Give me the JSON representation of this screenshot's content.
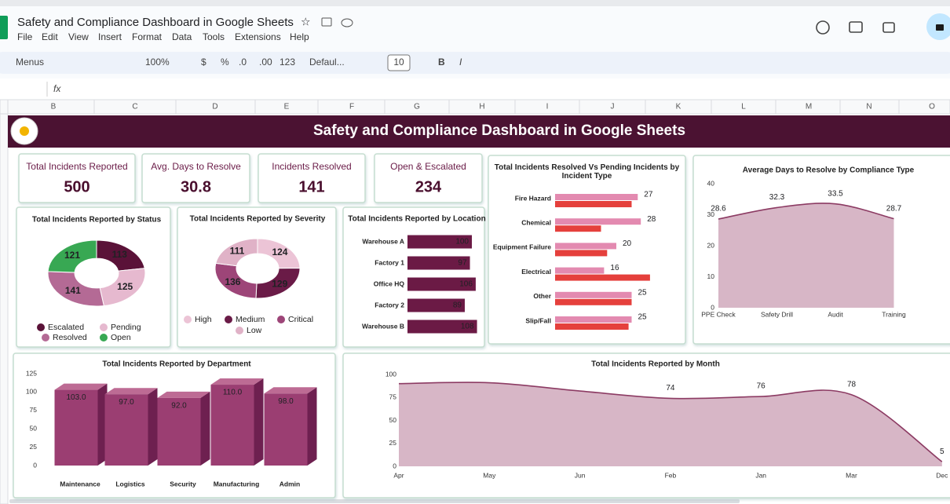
{
  "app": {
    "doc_title": "Safety and Compliance Dashboard in Google Sheets",
    "menu": [
      "File",
      "Edit",
      "View",
      "Insert",
      "Format",
      "Data",
      "Tools",
      "Extensions",
      "Help"
    ],
    "toolbar": [
      "Menus",
      "100%",
      "$",
      "%",
      ".0",
      ".00",
      "123",
      "Defaul...",
      "10",
      "B",
      "I"
    ],
    "formula_label": "fx",
    "columns": [
      "B",
      "C",
      "D",
      "E",
      "F",
      "G",
      "H",
      "I",
      "J",
      "K",
      "L",
      "M",
      "N",
      "O"
    ]
  },
  "dashboard": {
    "title": "Safety and Compliance Dashboard in Google Sheets",
    "kpis": [
      {
        "label": "Total Incidents Reported",
        "value": 500
      },
      {
        "label": "Avg. Days to Resolve",
        "value": 30.8
      },
      {
        "label": "Incidents Resolved",
        "value": 141
      },
      {
        "label": "Open & Escalated",
        "value": 234
      }
    ]
  },
  "chart_data": [
    {
      "type": "donut",
      "title": "Total Incidents Reported by Status",
      "categories": [
        "Escalated",
        "Pending",
        "Resolved",
        "Open"
      ],
      "values": [
        113,
        125,
        141,
        121
      ],
      "colors": [
        "#5a1238",
        "#e6b9cf",
        "#b46a95",
        "#38a853"
      ]
    },
    {
      "type": "donut",
      "title": "Total Incidents Reported by Severity",
      "categories": [
        "High",
        "Medium",
        "Critical",
        "Low"
      ],
      "values": [
        124,
        129,
        136,
        111
      ],
      "colors": [
        "#ecc4d6",
        "#6a1b47",
        "#9d4578",
        "#e0b2c7"
      ]
    },
    {
      "type": "hbar",
      "title": "Total Incidents Reported by Location",
      "categories": [
        "Warehouse A",
        "Factory 1",
        "Office HQ",
        "Factory 2",
        "Warehouse B"
      ],
      "values": [
        100,
        97,
        106,
        89,
        108
      ],
      "color": "#6b1a45"
    },
    {
      "type": "hbar_grouped",
      "title": "Total Incidents Resolved Vs Pending Incidents by Incident Type",
      "categories": [
        "Fire Hazard",
        "Chemical",
        "Equipment Failure",
        "Electrical",
        "Other",
        "Slip/Fall"
      ],
      "series": [
        {
          "color": "#e38ab0",
          "values": [
            27,
            28,
            20,
            16,
            25,
            25
          ],
          "data_labels": true
        },
        {
          "color": "#e5403c",
          "values": [
            25,
            15,
            17,
            31,
            25,
            24
          ],
          "data_labels": false
        }
      ]
    },
    {
      "type": "area",
      "title": "Average Days to Resolve by Compliance Type",
      "categories": [
        "PPE Check",
        "Safety Drill",
        "Audit",
        "Training"
      ],
      "values": [
        28.6,
        32.3,
        33.5,
        28.7
      ],
      "ylim": [
        0,
        40
      ],
      "yticks": [
        0,
        10,
        20,
        30,
        40
      ],
      "color": "#8c3b63",
      "fill": "#d7b6c6",
      "grid": false
    },
    {
      "type": "bar3d",
      "title": "Total Incidents Reported by Department",
      "categories": [
        "Maintenance",
        "Logistics",
        "Security",
        "Manufacturing",
        "Admin"
      ],
      "values": [
        103,
        97,
        92,
        110,
        98
      ],
      "value_labels": [
        "103.0",
        "97.0",
        "92.0",
        "110.0",
        "98.0"
      ],
      "ylim": [
        0,
        125
      ],
      "yticks": [
        0,
        25,
        50,
        75,
        100,
        125
      ],
      "color": "#9b3e72",
      "grid": false
    },
    {
      "type": "area",
      "title": "Total Incidents Reported by Month",
      "categories": [
        "Apr",
        "May",
        "Jun",
        "Feb",
        "Jan",
        "Mar",
        "Dec"
      ],
      "values": [
        90,
        91,
        82,
        74,
        76,
        78,
        5
      ],
      "value_labels": [
        null,
        null,
        null,
        "74",
        "76",
        "78",
        "5"
      ],
      "ylim": [
        0,
        100
      ],
      "yticks": [
        0,
        25,
        50,
        75,
        100
      ],
      "color": "#8c3b63",
      "fill": "#d7b6c6",
      "grid": false
    }
  ]
}
